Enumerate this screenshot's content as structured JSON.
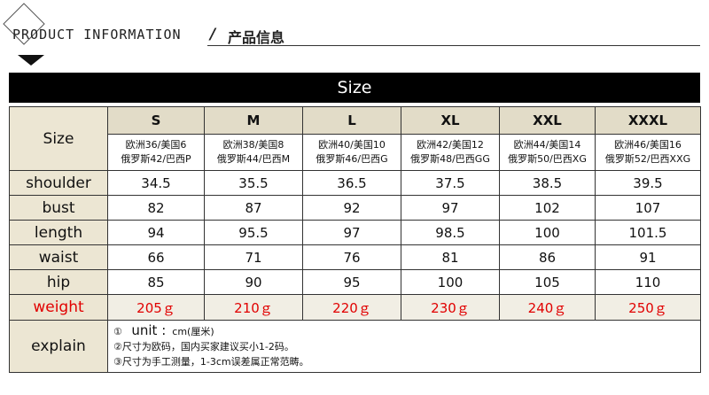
{
  "header": {
    "title": "PRODUCT INFORMATION",
    "separator": "/",
    "title_cn": "产品信息"
  },
  "table_title": "Size",
  "row_label_size": "Size",
  "sizes": [
    {
      "name": "S",
      "conv1": "欧洲36/美国6",
      "conv2": "俄罗斯42/巴西P"
    },
    {
      "name": "M",
      "conv1": "欧洲38/美国8",
      "conv2": "俄罗斯44/巴西M"
    },
    {
      "name": "L",
      "conv1": "欧洲40/美国10",
      "conv2": "俄罗斯46/巴西G"
    },
    {
      "name": "XL",
      "conv1": "欧洲42/美国12",
      "conv2": "俄罗斯48/巴西GG"
    },
    {
      "name": "XXL",
      "conv1": "欧洲44/美国14",
      "conv2": "俄罗斯50/巴西XG"
    },
    {
      "name": "XXXL",
      "conv1": "欧洲46/美国16",
      "conv2": "俄罗斯52/巴西XXG"
    }
  ],
  "rows": [
    {
      "label": "shoulder",
      "values": [
        "34.5",
        "35.5",
        "36.5",
        "37.5",
        "38.5",
        "39.5"
      ]
    },
    {
      "label": "bust",
      "values": [
        "82",
        "87",
        "92",
        "97",
        "102",
        "107"
      ]
    },
    {
      "label": "length",
      "values": [
        "94",
        "95.5",
        "97",
        "98.5",
        "100",
        "101.5"
      ]
    },
    {
      "label": "waist",
      "values": [
        "66",
        "71",
        "76",
        "81",
        "86",
        "91"
      ]
    },
    {
      "label": "hip",
      "values": [
        "85",
        "90",
        "95",
        "100",
        "105",
        "110"
      ]
    }
  ],
  "weight": {
    "label": "weight",
    "values": [
      "205ｇ",
      "210ｇ",
      "220ｇ",
      "230ｇ",
      "240ｇ",
      "250ｇ"
    ]
  },
  "explain": {
    "label": "explain",
    "line1_marker": "①",
    "line1_unit": "unit :",
    "line1_rest": "cm(厘米)",
    "line2": "②尺寸为欧码，国内买家建议买小1-2码。",
    "line3": "③尺寸为手工测量，1-3cm误差属正常范畴。"
  },
  "colors": {
    "title_bar": "#000000",
    "label_bg": "#ece6d3",
    "weight_text": "#e10000"
  }
}
